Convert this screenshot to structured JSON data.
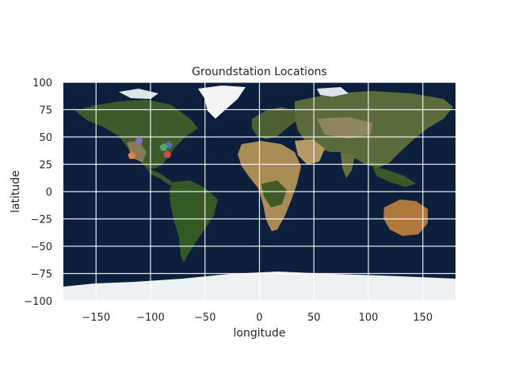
{
  "chart_data": {
    "type": "scatter",
    "title": "Groundstation Locations",
    "xlabel": "longitude",
    "ylabel": "latitude",
    "xlim": [
      -180,
      180
    ],
    "ylim": [
      -100,
      100
    ],
    "xticks": [
      -150,
      -100,
      -50,
      0,
      50,
      100,
      150
    ],
    "yticks": [
      -100,
      -75,
      -50,
      -25,
      0,
      25,
      50,
      75,
      100
    ],
    "grid": true,
    "background": "satellite world map (Blue Marble)",
    "marker": "pentagon",
    "series": [
      {
        "color": "#dd8452",
        "x": [
          -117.2
        ],
        "y": [
          33.0
        ]
      },
      {
        "color": "#4c72b0",
        "x": [
          -83.5
        ],
        "y": [
          42.5
        ]
      },
      {
        "color": "#55a868",
        "x": [
          -88.0
        ],
        "y": [
          40.5
        ]
      },
      {
        "color": "#c44e52",
        "x": [
          -84.5
        ],
        "y": [
          34.0
        ]
      },
      {
        "color": "#8172b3",
        "x": [
          -110.5
        ],
        "y": [
          46.5
        ]
      }
    ]
  }
}
